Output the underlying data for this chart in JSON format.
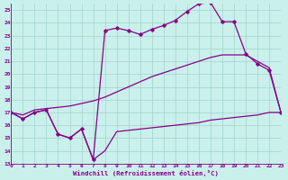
{
  "xlabel": "Windchill (Refroidissement éolien,°C)",
  "bg_color": "#caf0ec",
  "line_color": "#880088",
  "grid_color": "#a8d8d0",
  "xlim": [
    0,
    23
  ],
  "ylim": [
    13,
    25.5
  ],
  "ytick_vals": [
    13,
    14,
    15,
    16,
    17,
    18,
    19,
    20,
    21,
    22,
    23,
    24,
    25
  ],
  "xtick_vals": [
    0,
    1,
    2,
    3,
    4,
    5,
    6,
    7,
    8,
    9,
    10,
    11,
    12,
    13,
    14,
    15,
    16,
    17,
    18,
    19,
    20,
    21,
    22,
    23
  ],
  "curve1_x": [
    0,
    1,
    2,
    3,
    4,
    5,
    6,
    7,
    8,
    9,
    10,
    11,
    12,
    13,
    14,
    15,
    16,
    17,
    18,
    19,
    20,
    21,
    22,
    23
  ],
  "curve1_y": [
    17.0,
    16.5,
    17.0,
    17.2,
    15.3,
    15.0,
    15.7,
    13.3,
    23.4,
    23.6,
    23.4,
    23.1,
    23.5,
    23.8,
    24.2,
    24.9,
    25.5,
    25.6,
    24.1,
    24.1,
    21.6,
    20.8,
    20.3,
    17.0
  ],
  "curve2_x": [
    0,
    1,
    2,
    3,
    4,
    5,
    6,
    7,
    8,
    9,
    10,
    11,
    12,
    13,
    14,
    15,
    16,
    17,
    18,
    19,
    20,
    21,
    22,
    23
  ],
  "curve2_y": [
    17.0,
    16.8,
    17.2,
    17.3,
    17.4,
    17.5,
    17.7,
    17.9,
    18.2,
    18.6,
    19.0,
    19.4,
    19.8,
    20.1,
    20.4,
    20.7,
    21.0,
    21.3,
    21.5,
    21.5,
    21.5,
    21.0,
    20.5,
    17.0
  ],
  "curve3_x": [
    0,
    1,
    2,
    3,
    4,
    5,
    6,
    7,
    8,
    9,
    10,
    11,
    12,
    13,
    14,
    15,
    16,
    17,
    18,
    19,
    20,
    21,
    22,
    23
  ],
  "curve3_y": [
    17.0,
    16.5,
    17.0,
    17.2,
    15.3,
    15.0,
    15.7,
    13.3,
    14.0,
    15.5,
    15.6,
    15.7,
    15.8,
    15.9,
    16.0,
    16.1,
    16.2,
    16.4,
    16.5,
    16.6,
    16.7,
    16.8,
    17.0,
    17.0
  ]
}
